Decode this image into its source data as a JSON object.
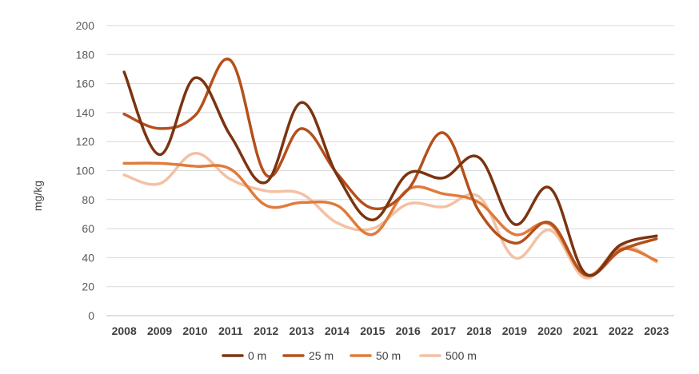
{
  "chart_data": {
    "type": "line",
    "title": "",
    "xlabel": "",
    "ylabel": "mg/kg",
    "ylim": [
      0,
      200
    ],
    "yticks": [
      0,
      20,
      40,
      60,
      80,
      100,
      120,
      140,
      160,
      180,
      200
    ],
    "grid": true,
    "smooth": true,
    "legend_position": "bottom",
    "categories": [
      "2008",
      "2009",
      "2010",
      "2011",
      "2012",
      "2013",
      "2014",
      "2015",
      "2016",
      "2017",
      "2018",
      "2019",
      "2020",
      "2021",
      "2022",
      "2023"
    ],
    "series": [
      {
        "name": "0 m",
        "color": "#7b3410",
        "values": [
          168,
          111,
          164,
          124,
          92,
          147,
          97,
          66,
          98,
          95,
          109,
          63,
          88,
          29,
          49,
          55
        ]
      },
      {
        "name": "25 m",
        "color": "#b5501c",
        "values": [
          139,
          129,
          138,
          176,
          97,
          129,
          98,
          74,
          87,
          126,
          72,
          50,
          64,
          28,
          45,
          53
        ]
      },
      {
        "name": "50 m",
        "color": "#e07b3a",
        "values": [
          105,
          105,
          103,
          101,
          76,
          78,
          76,
          56,
          87,
          84,
          78,
          56,
          63,
          28,
          46,
          38
        ]
      },
      {
        "name": "500 m",
        "color": "#f3c1a3",
        "values": [
          97,
          91,
          112,
          94,
          86,
          84,
          64,
          60,
          77,
          75,
          82,
          40,
          59,
          26,
          48,
          37
        ]
      }
    ]
  }
}
